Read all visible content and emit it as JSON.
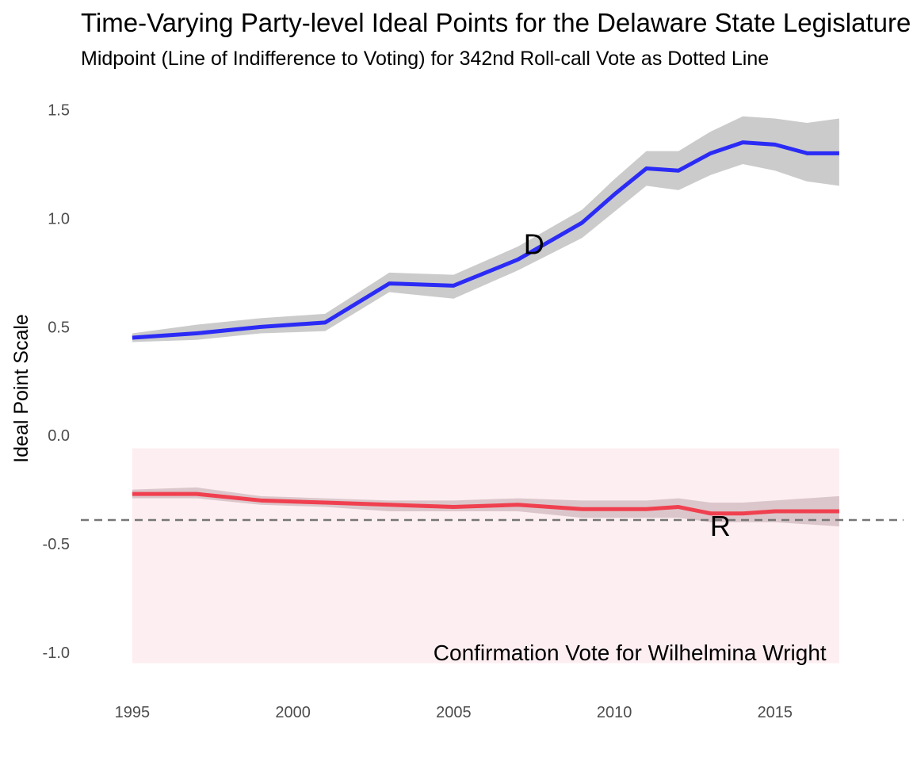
{
  "chart_data": {
    "type": "line",
    "title": "Time-Varying Party-level Ideal Points for the Delaware State Legislature",
    "subtitle": "Midpoint (Line of Indifference to Voting) for 342nd Roll-call Vote as Dotted Line",
    "xlabel": "",
    "ylabel": "Ideal Point Scale",
    "xlim": [
      1993.4,
      2019.0
    ],
    "ylim": [
      -1.15,
      1.63
    ],
    "x_ticks": [
      "1995",
      "2000",
      "2005",
      "2010",
      "2015"
    ],
    "y_ticks": [
      "1.5",
      "1.0",
      "0.5",
      "0.0",
      "-0.5",
      "-1.0"
    ],
    "grid": false,
    "legend": "none",
    "series": [
      {
        "name": "D",
        "color": "#2b2bf5",
        "band_color": "#c8c8c8",
        "label_at": [
          2007.5,
          0.88
        ],
        "points": [
          [
            1995,
            0.45,
            0.43,
            0.47
          ],
          [
            1997,
            0.47,
            0.44,
            0.51
          ],
          [
            1999,
            0.5,
            0.47,
            0.54
          ],
          [
            2001,
            0.52,
            0.48,
            0.56
          ],
          [
            2003,
            0.7,
            0.66,
            0.75
          ],
          [
            2005,
            0.69,
            0.63,
            0.74
          ],
          [
            2007,
            0.81,
            0.76,
            0.87
          ],
          [
            2009,
            0.98,
            0.91,
            1.04
          ],
          [
            2010,
            1.11,
            1.03,
            1.18
          ],
          [
            2011,
            1.23,
            1.15,
            1.31
          ],
          [
            2012,
            1.22,
            1.13,
            1.31
          ],
          [
            2013,
            1.3,
            1.2,
            1.4
          ],
          [
            2014,
            1.35,
            1.25,
            1.47
          ],
          [
            2015,
            1.34,
            1.22,
            1.46
          ],
          [
            2016,
            1.3,
            1.17,
            1.44
          ],
          [
            2017,
            1.3,
            1.15,
            1.46
          ]
        ]
      },
      {
        "name": "R",
        "color": "#f0404f",
        "band_color": "#d9c4c8",
        "label_at": [
          2013.3,
          -0.42
        ],
        "points": [
          [
            1995,
            -0.27,
            -0.25,
            -0.29
          ],
          [
            1997,
            -0.27,
            -0.24,
            -0.29
          ],
          [
            1999,
            -0.3,
            -0.28,
            -0.32
          ],
          [
            2001,
            -0.31,
            -0.29,
            -0.33
          ],
          [
            2003,
            -0.32,
            -0.3,
            -0.35
          ],
          [
            2005,
            -0.33,
            -0.3,
            -0.35
          ],
          [
            2007,
            -0.32,
            -0.29,
            -0.35
          ],
          [
            2009,
            -0.34,
            -0.3,
            -0.38
          ],
          [
            2011,
            -0.34,
            -0.3,
            -0.38
          ],
          [
            2012,
            -0.33,
            -0.29,
            -0.38
          ],
          [
            2013,
            -0.36,
            -0.31,
            -0.4
          ],
          [
            2014,
            -0.36,
            -0.31,
            -0.4
          ],
          [
            2015,
            -0.35,
            -0.3,
            -0.4
          ],
          [
            2016,
            -0.35,
            -0.29,
            -0.41
          ],
          [
            2017,
            -0.35,
            -0.28,
            -0.42
          ]
        ]
      }
    ],
    "reference_line": {
      "y": -0.39,
      "style": "dashed",
      "color": "#777777"
    },
    "shaded_region": {
      "x": [
        1995,
        2017
      ],
      "y": [
        -1.05,
        -0.06
      ],
      "color": "#fdeef1"
    },
    "annotation": {
      "text": "Confirmation Vote for Wilhelmina Wright",
      "x": 2016.6,
      "y": -1.0
    }
  }
}
